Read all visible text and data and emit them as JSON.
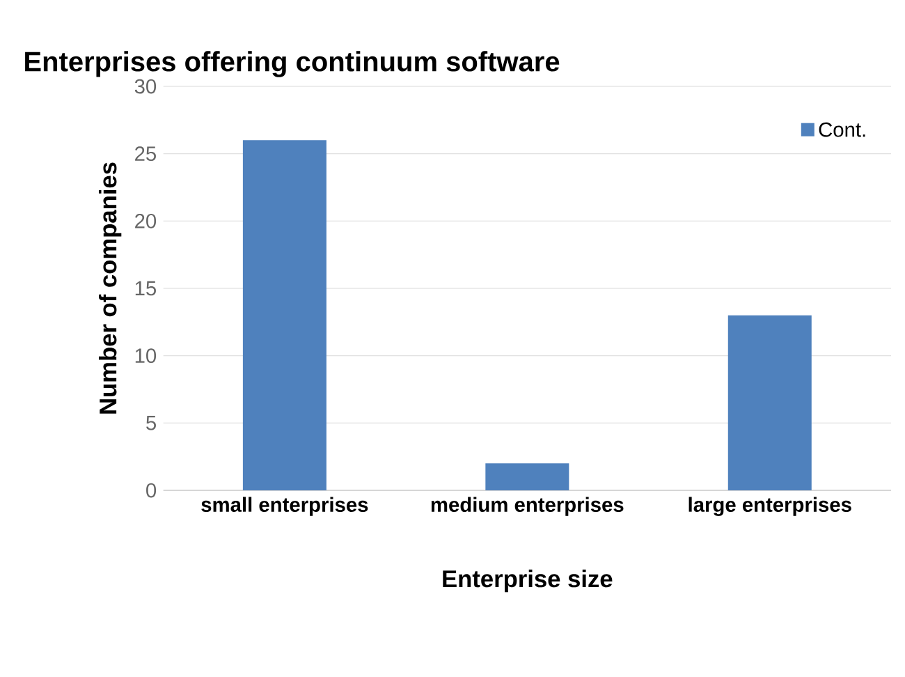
{
  "chart_data": {
    "type": "bar",
    "title": "Enterprises offering continuum software",
    "xlabel": "Enterprise size",
    "ylabel": "Number of companies",
    "categories": [
      "small enterprises",
      "medium enterprises",
      "large enterprises"
    ],
    "series": [
      {
        "name": "Cont.",
        "color": "#4f81bd",
        "values": [
          26,
          2,
          13
        ]
      }
    ],
    "ylim": [
      0,
      30
    ],
    "yticks": [
      0,
      5,
      10,
      15,
      20,
      25,
      30
    ],
    "grid": "y",
    "legend": "top right"
  }
}
